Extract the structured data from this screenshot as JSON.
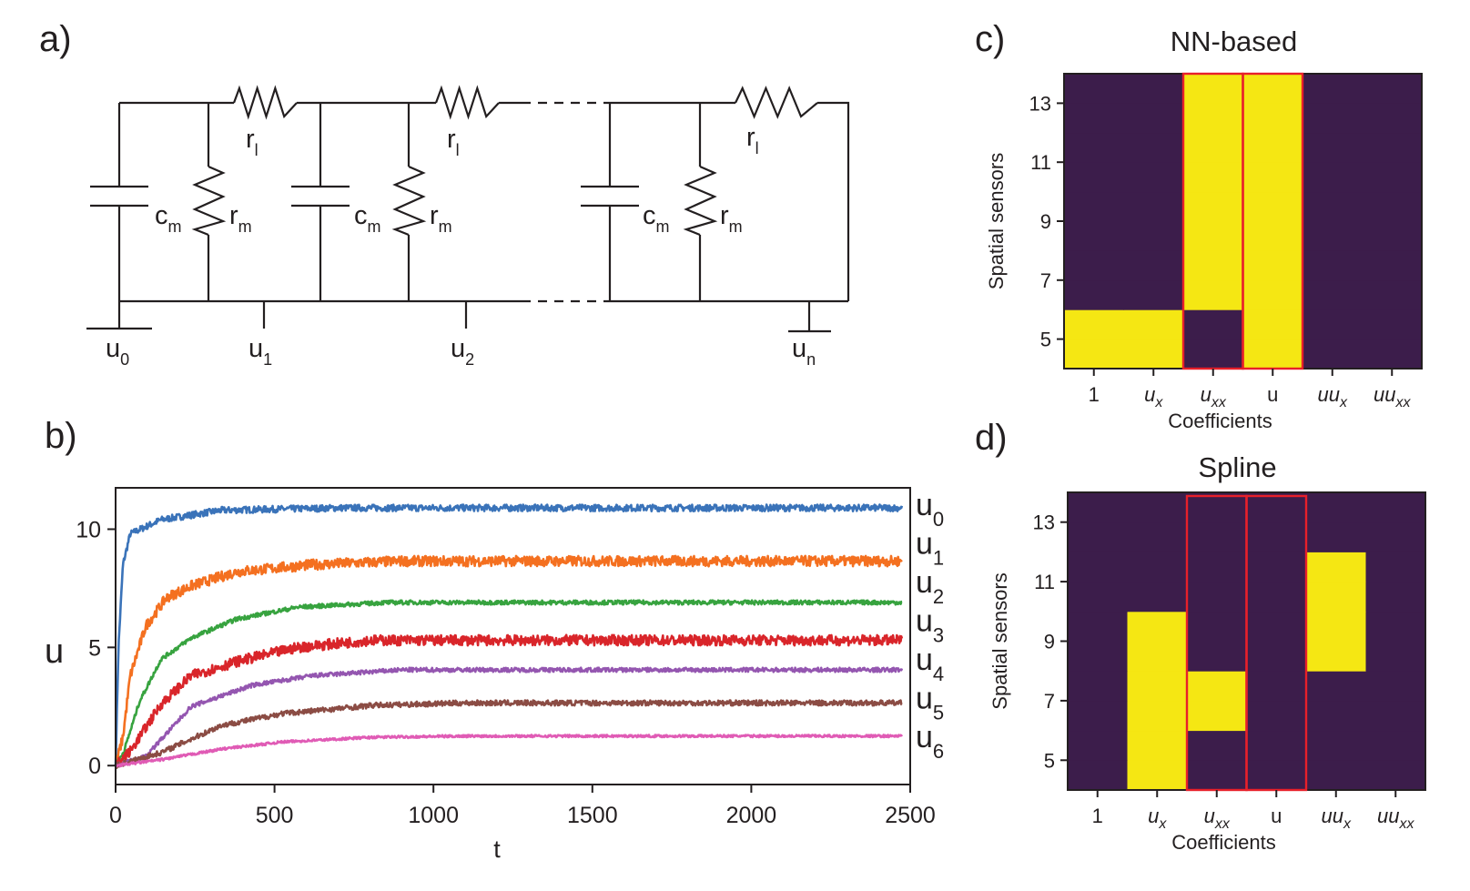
{
  "panels": {
    "a": "a)",
    "b": "b)",
    "c": "c)",
    "d": "d)"
  },
  "circuit": {
    "capacitor_label": "c",
    "capacitor_sub": "m",
    "membrane_resistor_label": "r",
    "membrane_resistor_sub": "m",
    "longitudinal_resistor_label": "r",
    "longitudinal_resistor_sub": "l",
    "nodes": [
      {
        "main": "u",
        "sub": "0"
      },
      {
        "main": "u",
        "sub": "1"
      },
      {
        "main": "u",
        "sub": "2"
      },
      {
        "main": "u",
        "sub": "n"
      }
    ]
  },
  "chart_data": [
    {
      "type": "line",
      "xlabel": "t",
      "ylabel": "u",
      "xlim": [
        0,
        2500
      ],
      "ylim": [
        -0.8,
        11.75
      ],
      "xticks": [
        0,
        500,
        1000,
        1500,
        2000,
        2500
      ],
      "yticks": [
        0,
        5,
        10
      ],
      "grid": false,
      "legend": "right, outside the axes, labels aligned with each curve",
      "series": [
        {
          "name": "u_0",
          "color": "#3a73b9",
          "points": [
            [
              0,
              0
            ],
            [
              9,
              5.0
            ],
            [
              23,
              8.5
            ],
            [
              46,
              9.8
            ],
            [
              143,
              10.4
            ],
            [
              333,
              10.8
            ],
            [
              700,
              10.9
            ],
            [
              2475,
              10.9
            ]
          ]
        },
        {
          "name": "u_1",
          "color": "#f47020",
          "points": [
            [
              0,
              0
            ],
            [
              23,
              1.2
            ],
            [
              46,
              3.8
            ],
            [
              95,
              5.9
            ],
            [
              160,
              7.1
            ],
            [
              238,
              7.6
            ],
            [
              381,
              8.2
            ],
            [
              619,
              8.5
            ],
            [
              900,
              8.65
            ],
            [
              2475,
              8.65
            ]
          ]
        },
        {
          "name": "u_2",
          "color": "#37a33f",
          "points": [
            [
              0,
              0
            ],
            [
              26,
              0.6
            ],
            [
              75,
              2.7
            ],
            [
              143,
              4.5
            ],
            [
              238,
              5.4
            ],
            [
              381,
              6.2
            ],
            [
              573,
              6.7
            ],
            [
              850,
              6.9
            ],
            [
              2475,
              6.9
            ]
          ]
        },
        {
          "name": "u_3",
          "color": "#d9252a",
          "points": [
            [
              0,
              0
            ],
            [
              46,
              0.6
            ],
            [
              143,
              2.6
            ],
            [
              238,
              3.8
            ],
            [
              381,
              4.4
            ],
            [
              573,
              5.0
            ],
            [
              800,
              5.3
            ],
            [
              2475,
              5.3
            ]
          ]
        },
        {
          "name": "u_4",
          "color": "#9456b0",
          "points": [
            [
              0,
              0
            ],
            [
              95,
              0.4
            ],
            [
              238,
              2.5
            ],
            [
              430,
              3.4
            ],
            [
              619,
              3.8
            ],
            [
              900,
              4.05
            ],
            [
              2475,
              4.05
            ]
          ]
        },
        {
          "name": "u_5",
          "color": "#8b4c44",
          "points": [
            [
              0,
              0
            ],
            [
              143,
              0.55
            ],
            [
              333,
              1.7
            ],
            [
              524,
              2.2
            ],
            [
              811,
              2.55
            ],
            [
              1100,
              2.65
            ],
            [
              2475,
              2.65
            ]
          ]
        },
        {
          "name": "u_6",
          "color": "#e05bb5",
          "points": [
            [
              0,
              0
            ],
            [
              143,
              0.25
            ],
            [
              333,
              0.7
            ],
            [
              524,
              1.0
            ],
            [
              811,
              1.2
            ],
            [
              1100,
              1.25
            ],
            [
              2475,
              1.25
            ]
          ]
        }
      ]
    },
    {
      "type": "heatmap",
      "title": "NN-based",
      "xlabel": "Coefficients",
      "ylabel": "Spatial sensors",
      "x_ticklabels": [
        "1",
        "u_x",
        "u_xx",
        "u",
        "uu_x",
        "uu_xx"
      ],
      "yticks": [
        5,
        7,
        9,
        11,
        13
      ],
      "ylim": [
        4,
        14
      ],
      "rows": [
        4,
        5,
        6,
        7,
        8,
        9,
        10,
        11,
        12,
        13
      ],
      "matrix": [
        [
          1,
          1,
          0,
          1,
          0,
          0
        ],
        [
          1,
          1,
          0,
          1,
          0,
          0
        ],
        [
          0,
          0,
          1,
          1,
          0,
          0
        ],
        [
          0,
          0,
          1,
          1,
          0,
          0
        ],
        [
          0,
          0,
          1,
          1,
          0,
          0
        ],
        [
          0,
          0,
          1,
          1,
          0,
          0
        ],
        [
          0,
          0,
          1,
          1,
          0,
          0
        ],
        [
          0,
          0,
          1,
          1,
          0,
          0
        ],
        [
          0,
          0,
          1,
          1,
          0,
          0
        ],
        [
          0,
          0,
          1,
          1,
          0,
          0
        ]
      ],
      "highlighted_columns": [
        "u_xx",
        "u"
      ],
      "colors": {
        "low": "#3c1d4b",
        "high": "#f5e713",
        "highlight": "#e8202a"
      }
    },
    {
      "type": "heatmap",
      "title": "Spline",
      "xlabel": "Coefficients",
      "ylabel": "Spatial sensors",
      "x_ticklabels": [
        "1",
        "u_x",
        "u_xx",
        "u",
        "uu_x",
        "uu_xx"
      ],
      "yticks": [
        5,
        7,
        9,
        11,
        13
      ],
      "ylim": [
        4,
        14
      ],
      "rows": [
        4,
        5,
        6,
        7,
        8,
        9,
        10,
        11,
        12,
        13
      ],
      "matrix": [
        [
          0,
          1,
          0,
          0,
          0,
          0
        ],
        [
          0,
          1,
          0,
          0,
          0,
          0
        ],
        [
          0,
          1,
          1,
          0,
          0,
          0
        ],
        [
          0,
          1,
          1,
          0,
          0,
          0
        ],
        [
          0,
          1,
          0,
          0,
          1,
          0
        ],
        [
          0,
          1,
          0,
          0,
          1,
          0
        ],
        [
          0,
          0,
          0,
          0,
          1,
          0
        ],
        [
          0,
          0,
          0,
          0,
          1,
          0
        ],
        [
          0,
          0,
          0,
          0,
          0,
          0
        ],
        [
          0,
          0,
          0,
          0,
          0,
          0
        ]
      ],
      "highlighted_columns": [
        "u_xx",
        "u"
      ],
      "colors": {
        "low": "#3c1d4b",
        "high": "#f5e713",
        "highlight": "#e8202a"
      }
    }
  ]
}
